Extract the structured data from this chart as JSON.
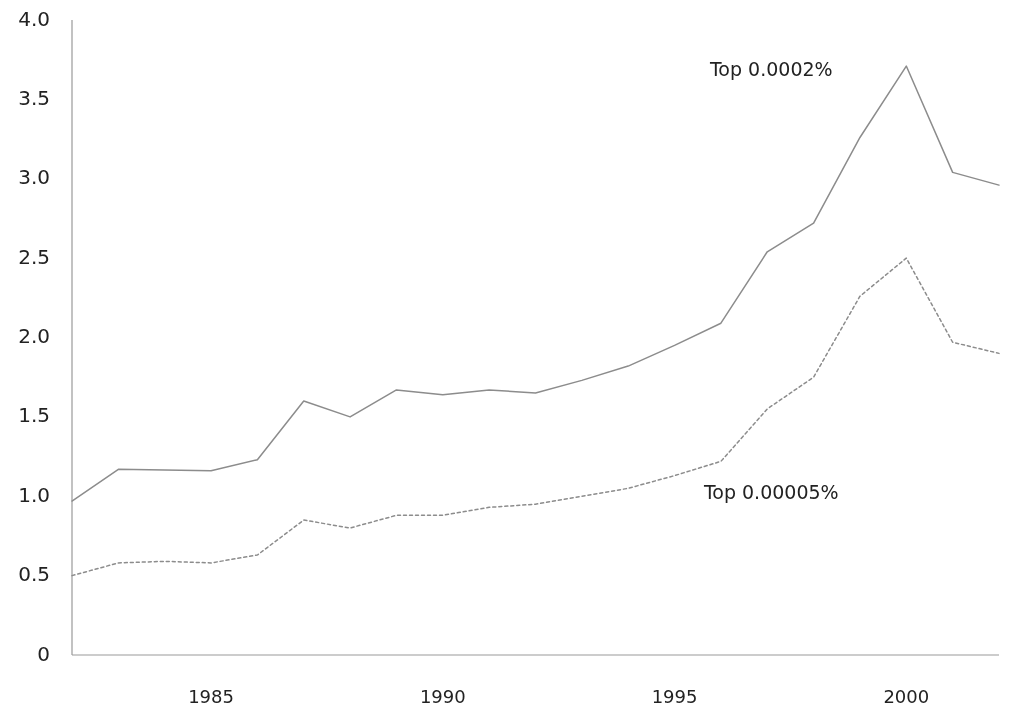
{
  "chart_data": {
    "type": "line",
    "x": [
      1982,
      1983,
      1984,
      1985,
      1986,
      1987,
      1988,
      1989,
      1990,
      1991,
      1992,
      1993,
      1994,
      1995,
      1996,
      1997,
      1998,
      1999,
      2000,
      2001,
      2002
    ],
    "series": [
      {
        "name": "Top 0.0002%",
        "color": "#8c8c8c",
        "line_style": "solid",
        "values": [
          0.97,
          1.17,
          1.165,
          1.16,
          1.23,
          1.6,
          1.5,
          1.67,
          1.64,
          1.67,
          1.65,
          1.73,
          1.82,
          1.95,
          2.09,
          2.54,
          2.72,
          3.26,
          3.71,
          3.04,
          2.96
        ]
      },
      {
        "name": "Top 0.00005%",
        "color": "#8c8c8c",
        "line_style": "dotted",
        "values": [
          0.5,
          0.58,
          0.59,
          0.58,
          0.63,
          0.85,
          0.8,
          0.88,
          0.88,
          0.93,
          0.95,
          1.0,
          1.05,
          1.13,
          1.22,
          1.55,
          1.75,
          2.26,
          2.5,
          1.97,
          1.9
        ]
      }
    ],
    "xlim": [
      1982,
      2002
    ],
    "xticks": [
      1985,
      1990,
      1995,
      2000
    ],
    "ylim": [
      0,
      4
    ],
    "yticks": [
      0,
      {
        "value": 0.5,
        "label": "0.5"
      },
      {
        "value": 1,
        "label": "1.0"
      },
      {
        "value": 1.5,
        "label": "1.5"
      },
      {
        "value": 2,
        "label": "2.0"
      },
      {
        "value": 2.5,
        "label": "2.5"
      },
      {
        "value": 3,
        "label": "3.0"
      },
      {
        "value": 3.5,
        "label": "3.5"
      },
      {
        "value": 4,
        "label": "4.0"
      }
    ],
    "grid": false
  }
}
